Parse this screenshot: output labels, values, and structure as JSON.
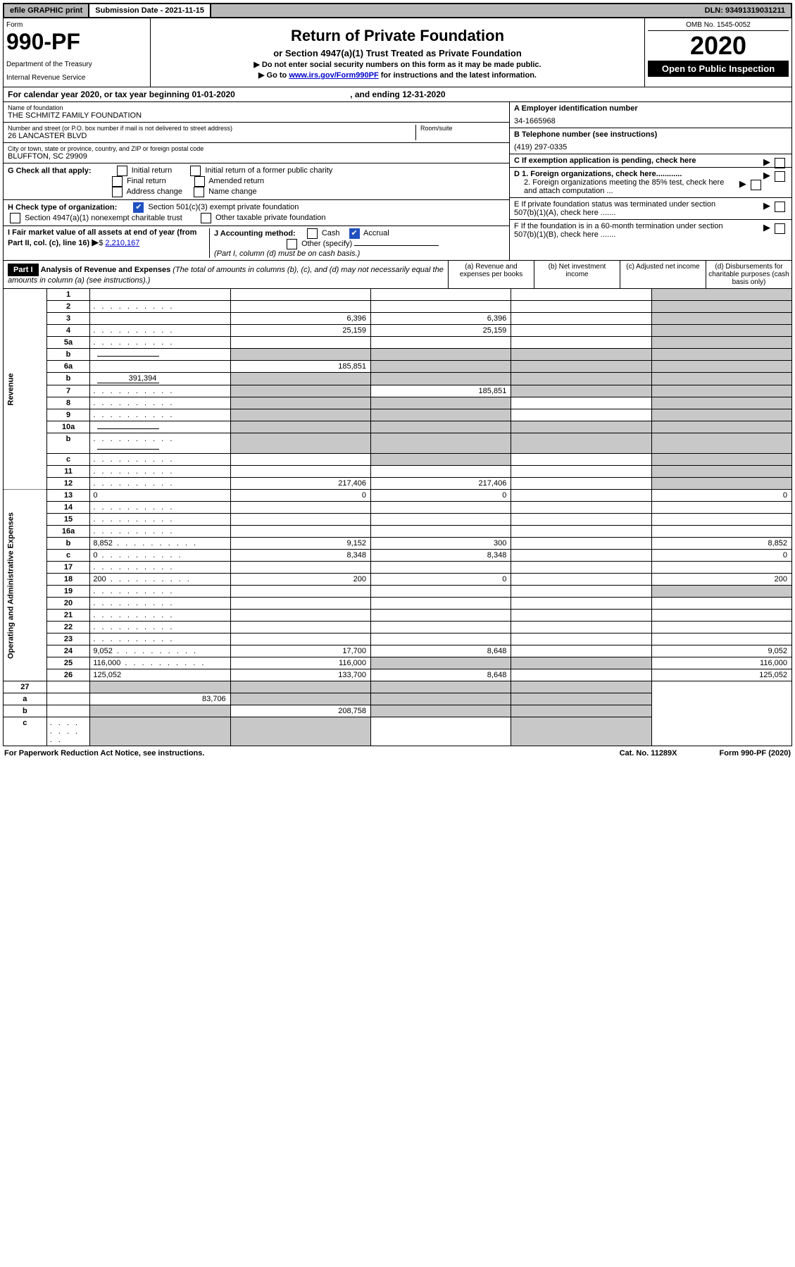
{
  "topbar": {
    "efile": "efile GRAPHIC print",
    "submission": "Submission Date - 2021-11-15",
    "dln": "DLN: 93491319031211"
  },
  "header": {
    "form_label": "Form",
    "form_number": "990-PF",
    "dept1": "Department of the Treasury",
    "dept2": "Internal Revenue Service",
    "title": "Return of Private Foundation",
    "subtitle": "or Section 4947(a)(1) Trust Treated as Private Foundation",
    "inst1": "▶ Do not enter social security numbers on this form as it may be made public.",
    "inst2_pre": "▶ Go to ",
    "inst2_link": "www.irs.gov/Form990PF",
    "inst2_post": " for instructions and the latest information.",
    "omb": "OMB No. 1545-0052",
    "year": "2020",
    "open": "Open to Public Inspection"
  },
  "cal": {
    "text_pre": "For calendar year 2020, or tax year beginning ",
    "begin": "01-01-2020",
    "text_mid": " , and ending ",
    "end": "12-31-2020"
  },
  "entity": {
    "name_label": "Name of foundation",
    "name": "THE SCHMITZ FAMILY FOUNDATION",
    "addr_label": "Number and street (or P.O. box number if mail is not delivered to street address)",
    "addr": "26 LANCASTER BLVD",
    "room_label": "Room/suite",
    "city_label": "City or town, state or province, country, and ZIP or foreign postal code",
    "city": "BLUFFTON, SC  29909",
    "ein_label": "A Employer identification number",
    "ein": "34-1665968",
    "phone_label": "B Telephone number (see instructions)",
    "phone": "(419) 297-0335",
    "c_label": "C If exemption application is pending, check here",
    "g_label": "G Check all that apply:",
    "g_opts": [
      "Initial return",
      "Initial return of a former public charity",
      "Final return",
      "Amended return",
      "Address change",
      "Name change"
    ],
    "d1": "D 1. Foreign organizations, check here............",
    "d2": "2. Foreign organizations meeting the 85% test, check here and attach computation ...",
    "e": "E  If private foundation status was terminated under section 507(b)(1)(A), check here .......",
    "h_label": "H Check type of organization:",
    "h1": "Section 501(c)(3) exempt private foundation",
    "h2": "Section 4947(a)(1) nonexempt charitable trust",
    "h3": "Other taxable private foundation",
    "f": "F  If the foundation is in a 60-month termination under section 507(b)(1)(B), check here .......",
    "i_label": "I Fair market value of all assets at end of year (from Part II, col. (c), line 16)",
    "i_val": "2,210,167",
    "j_label": "J Accounting method:",
    "j_cash": "Cash",
    "j_accrual": "Accrual",
    "j_other": "Other (specify)",
    "j_note": "(Part I, column (d) must be on cash basis.)"
  },
  "part1": {
    "label": "Part I",
    "title": "Analysis of Revenue and Expenses",
    "note": " (The total of amounts in columns (b), (c), and (d) may not necessarily equal the amounts in column (a) (see instructions).)",
    "col_a": "(a) Revenue and expenses per books",
    "col_b": "(b) Net investment income",
    "col_c": "(c) Adjusted net income",
    "col_d": "(d) Disbursements for charitable purposes (cash basis only)"
  },
  "sections": {
    "revenue": "Revenue",
    "expenses": "Operating and Administrative Expenses"
  },
  "lines": [
    {
      "n": "1",
      "d": "",
      "a": "",
      "b": "",
      "c": "",
      "grey_c": false,
      "grey_d": true
    },
    {
      "n": "2",
      "d": "",
      "dots": true,
      "a": "",
      "b": "",
      "c": "",
      "grey_d": true,
      "raw": true
    },
    {
      "n": "3",
      "d": "",
      "a": "6,396",
      "b": "6,396",
      "c": "",
      "grey_d": true
    },
    {
      "n": "4",
      "d": "",
      "dots": true,
      "a": "25,159",
      "b": "25,159",
      "c": "",
      "grey_d": true
    },
    {
      "n": "5a",
      "d": "",
      "dots": true,
      "a": "",
      "b": "",
      "c": "",
      "grey_d": true
    },
    {
      "n": "b",
      "d": "",
      "inline": "",
      "a": "",
      "b": "",
      "c": "",
      "grey_a": true,
      "grey_b": true,
      "grey_c": true,
      "grey_d": true
    },
    {
      "n": "6a",
      "d": "",
      "a": "185,851",
      "b": "",
      "c": "",
      "grey_b": true,
      "grey_c": true,
      "grey_d": true
    },
    {
      "n": "b",
      "d": "",
      "inline": "391,394",
      "a": "",
      "b": "",
      "c": "",
      "grey_a": true,
      "grey_b": true,
      "grey_c": true,
      "grey_d": true
    },
    {
      "n": "7",
      "d": "",
      "dots": true,
      "a": "",
      "b": "185,851",
      "c": "",
      "grey_a": true,
      "grey_c": true,
      "grey_d": true
    },
    {
      "n": "8",
      "d": "",
      "dots": true,
      "a": "",
      "b": "",
      "c": "",
      "grey_a": true,
      "grey_b": true,
      "grey_d": true
    },
    {
      "n": "9",
      "d": "",
      "dots": true,
      "a": "",
      "b": "",
      "c": "",
      "grey_a": true,
      "grey_b": true,
      "grey_d": true
    },
    {
      "n": "10a",
      "d": "",
      "inline": "",
      "a": "",
      "b": "",
      "c": "",
      "grey_a": true,
      "grey_b": true,
      "grey_c": true,
      "grey_d": true
    },
    {
      "n": "b",
      "d": "",
      "dots": true,
      "inline": "",
      "a": "",
      "b": "",
      "c": "",
      "grey_a": true,
      "grey_b": true,
      "grey_c": true,
      "grey_d": true
    },
    {
      "n": "c",
      "d": "",
      "dots": true,
      "a": "",
      "b": "",
      "c": "",
      "grey_b": true,
      "grey_d": true
    },
    {
      "n": "11",
      "d": "",
      "dots": true,
      "a": "",
      "b": "",
      "c": "",
      "grey_d": true
    },
    {
      "n": "12",
      "d": "",
      "dots": true,
      "a": "217,406",
      "b": "217,406",
      "c": "",
      "grey_d": true,
      "raw": true
    }
  ],
  "exp_lines": [
    {
      "n": "13",
      "d": "0",
      "a": "0",
      "b": "0",
      "c": ""
    },
    {
      "n": "14",
      "d": "",
      "dots": true,
      "a": "",
      "b": "",
      "c": ""
    },
    {
      "n": "15",
      "d": "",
      "dots": true,
      "a": "",
      "b": "",
      "c": ""
    },
    {
      "n": "16a",
      "d": "",
      "dots": true,
      "a": "",
      "b": "",
      "c": ""
    },
    {
      "n": "b",
      "d": "8,852",
      "dots": true,
      "a": "9,152",
      "b": "300",
      "c": ""
    },
    {
      "n": "c",
      "d": "0",
      "dots": true,
      "a": "8,348",
      "b": "8,348",
      "c": ""
    },
    {
      "n": "17",
      "d": "",
      "dots": true,
      "a": "",
      "b": "",
      "c": ""
    },
    {
      "n": "18",
      "d": "200",
      "dots": true,
      "a": "200",
      "b": "0",
      "c": ""
    },
    {
      "n": "19",
      "d": "",
      "dots": true,
      "a": "",
      "b": "",
      "c": "",
      "grey_d": true
    },
    {
      "n": "20",
      "d": "",
      "dots": true,
      "a": "",
      "b": "",
      "c": ""
    },
    {
      "n": "21",
      "d": "",
      "dots": true,
      "a": "",
      "b": "",
      "c": ""
    },
    {
      "n": "22",
      "d": "",
      "dots": true,
      "a": "",
      "b": "",
      "c": ""
    },
    {
      "n": "23",
      "d": "",
      "dots": true,
      "a": "",
      "b": "",
      "c": ""
    },
    {
      "n": "24",
      "d": "9,052",
      "dots": true,
      "a": "17,700",
      "b": "8,648",
      "c": "",
      "raw": true
    },
    {
      "n": "25",
      "d": "116,000",
      "dots": true,
      "a": "116,000",
      "b": "",
      "c": "",
      "grey_b": true,
      "grey_c": true
    },
    {
      "n": "26",
      "d": "125,052",
      "a": "133,700",
      "b": "8,648",
      "c": "",
      "raw": true
    }
  ],
  "net_lines": [
    {
      "n": "27",
      "d": "",
      "a": "",
      "b": "",
      "c": "",
      "grey_a": true,
      "grey_b": true,
      "grey_c": true,
      "grey_d": true
    },
    {
      "n": "a",
      "d": "",
      "a": "83,706",
      "b": "",
      "c": "",
      "grey_b": true,
      "grey_c": true,
      "grey_d": true,
      "raw": true
    },
    {
      "n": "b",
      "d": "",
      "a": "",
      "b": "208,758",
      "c": "",
      "grey_a": true,
      "grey_c": true,
      "grey_d": true,
      "raw": true
    },
    {
      "n": "c",
      "d": "",
      "dots": true,
      "a": "",
      "b": "",
      "c": "",
      "grey_a": true,
      "grey_b": true,
      "grey_d": true,
      "raw": true
    }
  ],
  "footer": {
    "left": "For Paperwork Reduction Act Notice, see instructions.",
    "mid": "Cat. No. 11289X",
    "right": "Form 990-PF (2020)"
  }
}
